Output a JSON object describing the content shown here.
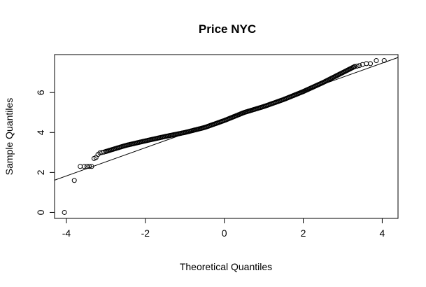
{
  "chart_data": {
    "type": "scatter",
    "title": "Price NYC",
    "xlabel": "Theoretical Quantiles",
    "ylabel": "Sample Quantiles",
    "xlim": [
      -4.3,
      4.4
    ],
    "ylim": [
      -0.3,
      7.9
    ],
    "x_ticks": [
      -4,
      -2,
      0,
      2,
      4
    ],
    "y_ticks": [
      0,
      2,
      4,
      6
    ],
    "grid": false,
    "legend": "none",
    "reference_line": {
      "intercept": 4.65,
      "slope": 0.706
    },
    "series": [
      {
        "marker": "open-circle",
        "points": [
          [
            -4.05,
            0.0
          ],
          [
            -3.8,
            1.6
          ],
          [
            -3.65,
            2.3
          ],
          [
            -3.55,
            2.3
          ],
          [
            -3.48,
            2.3
          ],
          [
            -3.42,
            2.3
          ],
          [
            -3.36,
            2.3
          ],
          [
            -3.3,
            2.7
          ],
          [
            -3.25,
            2.75
          ],
          [
            -3.2,
            2.9
          ],
          [
            -3.15,
            2.98
          ],
          [
            -3.1,
            3.0
          ],
          [
            -3.05,
            3.02
          ],
          [
            -3.0,
            3.05
          ],
          [
            3.3,
            7.3
          ],
          [
            3.36,
            7.32
          ],
          [
            3.42,
            7.35
          ],
          [
            3.5,
            7.4
          ],
          [
            3.6,
            7.45
          ],
          [
            3.7,
            7.45
          ],
          [
            3.85,
            7.6
          ],
          [
            4.05,
            7.6
          ]
        ],
        "bulk_quantiles": [
          [
            -3.0,
            3.05
          ],
          [
            -2.5,
            3.35
          ],
          [
            -2.0,
            3.58
          ],
          [
            -1.5,
            3.8
          ],
          [
            -1.0,
            4.0
          ],
          [
            -0.5,
            4.25
          ],
          [
            0.0,
            4.6
          ],
          [
            0.5,
            5.0
          ],
          [
            1.0,
            5.3
          ],
          [
            1.5,
            5.65
          ],
          [
            2.0,
            6.05
          ],
          [
            2.5,
            6.5
          ],
          [
            3.0,
            7.0
          ],
          [
            3.3,
            7.3
          ]
        ],
        "bulk_point_count": 260
      }
    ]
  }
}
